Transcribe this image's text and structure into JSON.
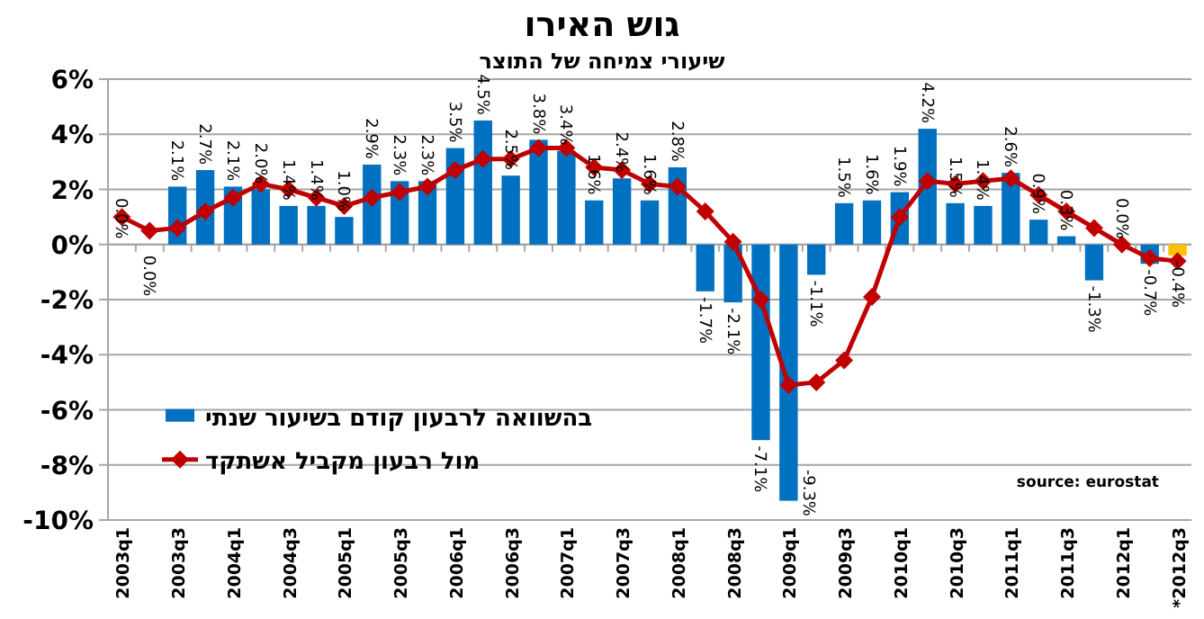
{
  "chart_data": {
    "type": "bar",
    "title": "גוש האירו",
    "subtitle": "שיעורי צמיחה של התוצר",
    "categories": [
      "2003q1",
      null,
      "2003q3",
      null,
      "2004q1",
      null,
      "2004q3",
      null,
      "2005q1",
      null,
      "2005q3",
      null,
      "2006q1",
      null,
      "2006q3",
      null,
      "2007q1",
      null,
      "2007q3",
      null,
      "2008q1",
      null,
      "2008q3",
      null,
      "2009q1",
      null,
      "2009q3",
      null,
      "2010q1",
      null,
      "2010q3",
      null,
      "2011q1",
      null,
      "2011q3",
      null,
      "2012q1",
      null,
      "*2012q3"
    ],
    "series": [
      {
        "name": "בהשוואה לרבעון קודם בשיעור שנתי",
        "color": "#0070c0",
        "colors": [
          "#0070c0",
          "#0070c0",
          "#0070c0",
          "#0070c0",
          "#0070c0",
          "#0070c0",
          "#0070c0",
          "#0070c0",
          "#0070c0",
          "#0070c0",
          "#0070c0",
          "#0070c0",
          "#0070c0",
          "#0070c0",
          "#0070c0",
          "#0070c0",
          "#0070c0",
          "#0070c0",
          "#0070c0",
          "#0070c0",
          "#0070c0",
          "#0070c0",
          "#0070c0",
          "#0070c0",
          "#0070c0",
          "#0070c0",
          "#0070c0",
          "#0070c0",
          "#0070c0",
          "#0070c0",
          "#0070c0",
          "#0070c0",
          "#0070c0",
          "#0070c0",
          "#0070c0",
          "#0070c0",
          "#0070c0",
          "#0070c0",
          "#ffc000"
        ],
        "values": [
          0.0,
          0.0,
          2.1,
          2.7,
          2.1,
          2.0,
          1.4,
          1.4,
          1.0,
          2.9,
          2.3,
          2.3,
          3.5,
          4.5,
          2.5,
          3.8,
          3.4,
          1.6,
          2.4,
          1.6,
          2.8,
          -1.7,
          -2.1,
          -7.1,
          -9.3,
          -1.1,
          1.5,
          1.6,
          1.9,
          4.2,
          1.5,
          1.4,
          2.6,
          0.9,
          0.3,
          -1.3,
          0.0,
          -0.7,
          -0.4
        ],
        "value_labels": [
          "0.0%",
          "0.0%",
          "2.1%",
          "2.7%",
          "2.1%",
          "2.0%",
          "1.4%",
          "1.4%",
          "1.0%",
          "2.9%",
          "2.3%",
          "2.3%",
          "3.5%",
          "4.5%",
          "2.5%",
          "3.8%",
          "3.4%",
          "1.6%",
          "2.4%",
          "1.6%",
          "2.8%",
          "-1.7%",
          "-2.1%",
          "-7.1%",
          "-9.3%",
          "-1.1%",
          "1.5%",
          "1.6%",
          "1.9%",
          "4.2%",
          "1.5%",
          "1.4%",
          "2.6%",
          "0.9%",
          "0.3%",
          "-1.3%",
          "0.0%",
          "-0.7%",
          "-0.4%"
        ]
      },
      {
        "name": "מול רבעון מקביל אשתקד",
        "type": "line",
        "color": "#c00000",
        "marker": "diamond",
        "values": [
          1.0,
          0.5,
          0.6,
          1.2,
          1.7,
          2.2,
          2.0,
          1.7,
          1.4,
          1.7,
          1.9,
          2.1,
          2.7,
          3.1,
          3.1,
          3.5,
          3.5,
          2.8,
          2.7,
          2.2,
          2.1,
          1.2,
          0.1,
          -2.0,
          -5.1,
          -5.0,
          -4.2,
          -1.9,
          1.0,
          2.3,
          2.2,
          2.3,
          2.4,
          1.8,
          1.2,
          0.6,
          0.0,
          -0.5,
          -0.6
        ]
      }
    ],
    "ylim": [
      -10,
      6
    ],
    "yticks": [
      {
        "value": -10,
        "label": "-10%"
      },
      {
        "value": -8,
        "label": "-8%"
      },
      {
        "value": -6,
        "label": "-6%"
      },
      {
        "value": -4,
        "label": "-4%"
      },
      {
        "value": -2,
        "label": "-2%"
      },
      {
        "value": 0,
        "label": "0%"
      },
      {
        "value": 2,
        "label": "2%"
      },
      {
        "value": 4,
        "label": "4%"
      },
      {
        "value": 6,
        "label": "6%"
      }
    ],
    "grid": "y",
    "legend": "bottom left",
    "annotations": [
      "source: eurostat"
    ]
  }
}
